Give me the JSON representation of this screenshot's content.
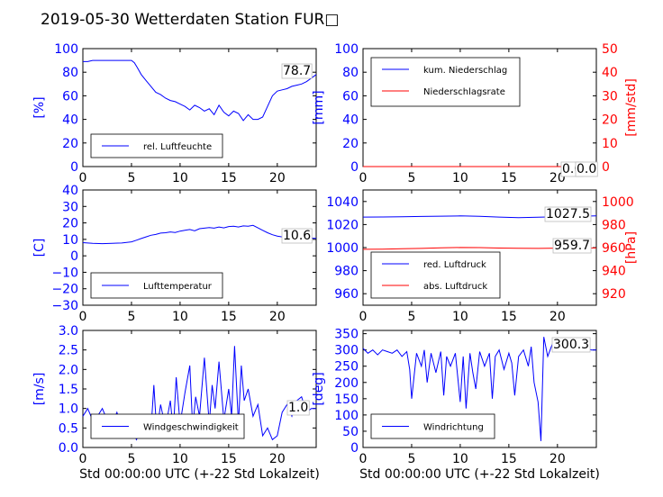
{
  "title": "2019-05-30 Wetterdaten Station FUR□",
  "colors": {
    "primary": "#0000ff",
    "secondary": "#ff0000",
    "axis": "#000000"
  },
  "chart_data": [
    {
      "id": "humidity",
      "type": "line",
      "ylabel": "[%]",
      "xlabel": "",
      "xlim": [
        0,
        24
      ],
      "ylim": [
        0,
        100
      ],
      "xticks": [
        "0",
        "5",
        "10",
        "15",
        "20"
      ],
      "yticks": [
        "0",
        "20",
        "40",
        "60",
        "80",
        "100"
      ],
      "legend": [
        "rel. Luftfeuchte"
      ],
      "legend_position": "lower-left",
      "annotations": [
        "78.7"
      ],
      "series": [
        {
          "name": "rel. Luftfeuchte",
          "color": "#0000ff",
          "x": [
            0,
            0.5,
            1,
            2,
            3,
            4,
            5,
            5.3,
            5.6,
            6,
            6.5,
            7,
            7.5,
            8,
            8.5,
            9,
            9.5,
            10,
            10.5,
            11,
            11.5,
            12,
            12.5,
            13,
            13.5,
            14,
            14.5,
            15,
            15.5,
            16,
            16.5,
            17,
            17.5,
            18,
            18.5,
            19,
            19.5,
            20,
            20.5,
            21,
            21.5,
            22,
            22.5,
            23,
            23.5,
            24
          ],
          "y": [
            89,
            89,
            90,
            90,
            90,
            90,
            90,
            88,
            84,
            78,
            73,
            68,
            63,
            61,
            58,
            56,
            55,
            53,
            51,
            48,
            52,
            50,
            47,
            49,
            44,
            52,
            46,
            43,
            47,
            45,
            39,
            44,
            40,
            40,
            42,
            51,
            60,
            64,
            65,
            66,
            68,
            69,
            70,
            72,
            75,
            78
          ]
        }
      ]
    },
    {
      "id": "precipitation",
      "type": "line",
      "ylabel": "[mm]",
      "ylabel2": "[mm/std]",
      "xlabel": "",
      "xlim": [
        0,
        24
      ],
      "ylim": [
        0,
        100
      ],
      "ylim2": [
        0,
        50
      ],
      "xticks": [
        "0",
        "5",
        "10",
        "15",
        "20"
      ],
      "yticks": [
        "0",
        "20",
        "40",
        "60",
        "80",
        "100"
      ],
      "yticks2": [
        "0",
        "10",
        "20",
        "30",
        "40",
        "50"
      ],
      "legend": [
        "kum. Niederschlag",
        "Niederschlagsrate"
      ],
      "legend_position": "upper-left",
      "annotations": [
        "0.0",
        "0.0"
      ],
      "series": [
        {
          "name": "kum. Niederschlag",
          "color": "#0000ff",
          "axis": "left",
          "x": [
            0,
            24
          ],
          "y": [
            0,
            0
          ]
        },
        {
          "name": "Niederschlagsrate",
          "color": "#ff0000",
          "axis": "right",
          "x": [
            0,
            24
          ],
          "y": [
            0,
            0
          ]
        }
      ]
    },
    {
      "id": "temperature",
      "type": "line",
      "ylabel": "[C]",
      "xlabel": "",
      "xlim": [
        0,
        24
      ],
      "ylim": [
        -30,
        40
      ],
      "xticks": [
        "0",
        "5",
        "10",
        "15",
        "20"
      ],
      "yticks": [
        "−30",
        "−20",
        "−10",
        "0",
        "10",
        "20",
        "30",
        "40"
      ],
      "legend": [
        "Lufttemperatur"
      ],
      "legend_position": "lower-left",
      "annotations": [
        "10.6"
      ],
      "series": [
        {
          "name": "Lufttemperatur",
          "color": "#0000ff",
          "x": [
            0,
            1,
            2,
            3,
            4,
            5,
            5.5,
            6,
            6.5,
            7,
            7.5,
            8,
            8.5,
            9,
            9.5,
            10,
            10.5,
            11,
            11.5,
            12,
            12.5,
            13,
            13.5,
            14,
            14.5,
            15,
            15.5,
            16,
            16.5,
            17,
            17.5,
            18,
            18.5,
            19,
            19.5,
            20,
            20.5,
            21,
            22,
            23,
            24
          ],
          "y": [
            8,
            7.6,
            7.4,
            7.6,
            7.8,
            8.5,
            9.5,
            10.5,
            11.5,
            12.5,
            13,
            13.8,
            14,
            14.5,
            14.2,
            15,
            15.5,
            16,
            15.2,
            16.5,
            16.8,
            17.2,
            16.8,
            17.5,
            17,
            17.8,
            18,
            17.5,
            18.2,
            18,
            18.5,
            17,
            15.5,
            14,
            12.8,
            12,
            11.5,
            11.2,
            10.9,
            10.8,
            10.6
          ]
        }
      ]
    },
    {
      "id": "pressure",
      "type": "line",
      "ylabel2": "[hPa]",
      "xlabel": "",
      "xlim": [
        0,
        24
      ],
      "ylim": [
        950,
        1050
      ],
      "ylim2": [
        910,
        1010
      ],
      "xticks": [
        "0",
        "5",
        "10",
        "15",
        "20"
      ],
      "yticks": [
        "960",
        "980",
        "1000",
        "1020",
        "1040"
      ],
      "yticks2": [
        "920",
        "940",
        "960",
        "980",
        "1000"
      ],
      "legend": [
        "red. Luftdruck",
        "abs. Luftdruck"
      ],
      "legend_position": "lower-left",
      "annotations": [
        "1027.5",
        "959.7"
      ],
      "series": [
        {
          "name": "red. Luftdruck",
          "color": "#0000ff",
          "axis": "left",
          "x": [
            0,
            2,
            4,
            6,
            8,
            10,
            12,
            14,
            16,
            18,
            20,
            22,
            24
          ],
          "y": [
            1026.5,
            1026.6,
            1026.8,
            1027,
            1027.3,
            1027.5,
            1027.2,
            1026.5,
            1026,
            1026.3,
            1026.8,
            1027.2,
            1027.5
          ]
        },
        {
          "name": "abs. Luftdruck",
          "color": "#ff0000",
          "axis": "right",
          "x": [
            0,
            2,
            4,
            6,
            8,
            10,
            12,
            14,
            16,
            18,
            20,
            22,
            24
          ],
          "y": [
            958.5,
            958.7,
            959,
            959.3,
            959.8,
            960.1,
            960,
            959.6,
            959.4,
            959.3,
            959.5,
            959.6,
            959.7
          ]
        }
      ]
    },
    {
      "id": "windspeed",
      "type": "line",
      "ylabel": "[m/s]",
      "xlabel": "Std 00:00:00 UTC (+-22 Std Lokalzeit)",
      "xlim": [
        0,
        24
      ],
      "ylim": [
        0,
        3
      ],
      "xticks": [
        "0",
        "5",
        "10",
        "15",
        "20"
      ],
      "yticks": [
        "0.0",
        "0.5",
        "1.0",
        "1.5",
        "2.0",
        "2.5",
        "3.0"
      ],
      "legend": [
        "Windgeschwindigkeit"
      ],
      "legend_position": "lower-left",
      "annotations": [
        "1.0"
      ],
      "series": [
        {
          "name": "Windgeschwindigkeit",
          "color": "#0000ff",
          "x": [
            0,
            0.5,
            1,
            1.5,
            2,
            2.5,
            3,
            3.5,
            4,
            4.5,
            5,
            5.5,
            6,
            6.5,
            7,
            7.3,
            7.6,
            8,
            8.5,
            9,
            9.3,
            9.6,
            10,
            10.5,
            11,
            11.3,
            11.6,
            12,
            12.5,
            13,
            13.3,
            13.6,
            14,
            14.5,
            15,
            15.3,
            15.6,
            16,
            16.3,
            16.6,
            17,
            17.5,
            18,
            18.5,
            19,
            19.5,
            20,
            20.5,
            21,
            21.5,
            22,
            22.5,
            23,
            23.5,
            24
          ],
          "y": [
            0.8,
            1.0,
            0.7,
            0.8,
            1.0,
            0.7,
            0.6,
            0.9,
            0.5,
            0.8,
            0.6,
            0.2,
            0.4,
            0.6,
            0.4,
            1.6,
            0.4,
            1.1,
            0.5,
            1.2,
            0.4,
            1.8,
            0.6,
            1.4,
            2.1,
            0.5,
            1.3,
            0.8,
            2.3,
            0.6,
            1.6,
            1.0,
            2.2,
            0.7,
            1.5,
            0.8,
            2.6,
            0.6,
            2.1,
            1.2,
            1.5,
            0.8,
            1.1,
            0.3,
            0.5,
            0.2,
            0.3,
            0.9,
            1.1,
            0.8,
            1.2,
            1.3,
            0.9,
            1.0,
            1.0
          ]
        }
      ]
    },
    {
      "id": "winddirection",
      "type": "line",
      "ylabel": "[deg]",
      "xlabel": "Std 00:00:00 UTC (+-22 Std Lokalzeit)",
      "xlim": [
        0,
        24
      ],
      "ylim": [
        0,
        360
      ],
      "xticks": [
        "0",
        "5",
        "10",
        "15",
        "20"
      ],
      "yticks": [
        "0",
        "50",
        "100",
        "150",
        "200",
        "250",
        "300",
        "350"
      ],
      "legend": [
        "Windrichtung"
      ],
      "legend_position": "lower-left",
      "annotations": [
        "300.3"
      ],
      "series": [
        {
          "name": "Windrichtung",
          "color": "#0000ff",
          "x": [
            0,
            0.5,
            1,
            1.5,
            2,
            2.5,
            3,
            3.5,
            4,
            4.5,
            4.8,
            5,
            5.5,
            6,
            6.3,
            6.6,
            7,
            7.5,
            8,
            8.3,
            8.6,
            9,
            9.5,
            10,
            10.3,
            10.6,
            11,
            11.3,
            11.6,
            12,
            12.5,
            13,
            13.3,
            13.6,
            14,
            14.5,
            15,
            15.3,
            15.6,
            16,
            16.5,
            17,
            17.3,
            17.6,
            18,
            18.3,
            18.6,
            19,
            19.5,
            20,
            20.5,
            21,
            21.5,
            22,
            22.5,
            23,
            23.5,
            24
          ],
          "y": [
            305,
            290,
            300,
            285,
            300,
            295,
            290,
            300,
            280,
            295,
            240,
            150,
            290,
            250,
            300,
            200,
            290,
            230,
            295,
            160,
            280,
            250,
            290,
            140,
            280,
            120,
            290,
            230,
            180,
            295,
            250,
            290,
            150,
            280,
            300,
            240,
            290,
            260,
            160,
            280,
            300,
            250,
            310,
            200,
            140,
            20,
            340,
            280,
            320,
            300,
            310,
            305,
            300,
            310,
            300,
            305,
            300,
            300
          ]
        }
      ]
    }
  ]
}
